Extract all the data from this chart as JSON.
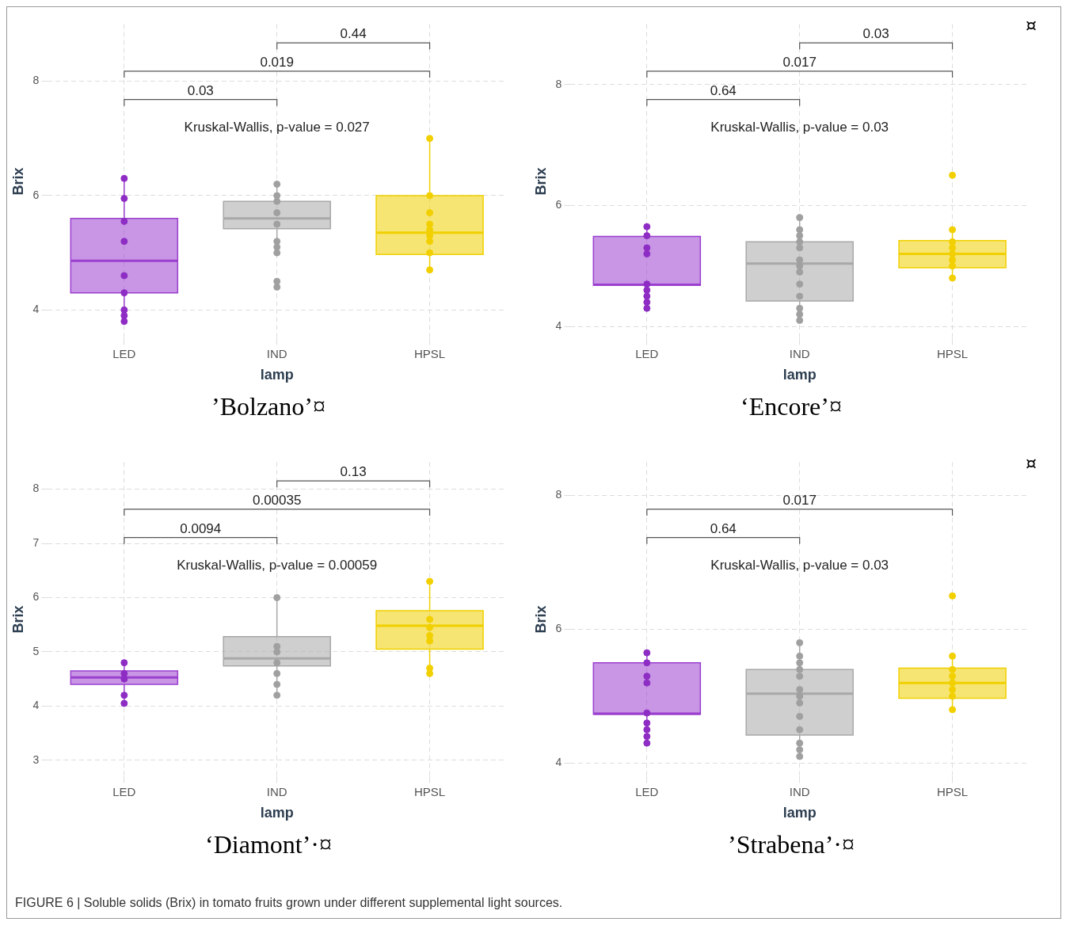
{
  "chart_data": [
    {
      "type": "box",
      "title": "’Bolzano’¤",
      "xlabel": "lamp",
      "ylabel": "Brix",
      "categories": [
        "LED",
        "IND",
        "HPSL"
      ],
      "colors": [
        "#9b3fcf",
        "#a8a8a8",
        "#f0d000"
      ],
      "ylim": [
        3.5,
        9.0
      ],
      "yticks": [
        4,
        6,
        8
      ],
      "grid": true,
      "boxes": [
        {
          "low": 3.8,
          "q1": 4.3,
          "median": 4.86,
          "q3": 5.6,
          "high": 6.27
        },
        {
          "low": 5.0,
          "q1": 5.42,
          "median": 5.6,
          "q3": 5.9,
          "high": 6.2
        },
        {
          "low": 4.7,
          "q1": 4.97,
          "median": 5.35,
          "q3": 6.0,
          "high": 7.0
        }
      ],
      "series": [
        {
          "type": "scatter",
          "color": "#8e2dc4",
          "x": [
            "LED",
            "LED",
            "LED",
            "LED",
            "LED",
            "LED",
            "LED",
            "LED",
            "LED"
          ],
          "values": [
            6.3,
            5.95,
            5.55,
            5.2,
            4.6,
            4.3,
            4.0,
            3.9,
            3.8
          ]
        },
        {
          "type": "scatter",
          "color": "#a0a0a0",
          "x": [
            "IND",
            "IND",
            "IND",
            "IND",
            "IND",
            "IND",
            "IND",
            "IND",
            "IND",
            "IND"
          ],
          "values": [
            6.2,
            6.0,
            5.9,
            5.7,
            5.5,
            5.2,
            5.1,
            5.0,
            4.5,
            4.4
          ]
        },
        {
          "type": "scatter",
          "color": "#f2d000",
          "x": [
            "HPSL",
            "HPSL",
            "HPSL",
            "HPSL",
            "HPSL",
            "HPSL",
            "HPSL",
            "HPSL",
            "HPSL"
          ],
          "values": [
            7.0,
            6.0,
            5.7,
            5.5,
            5.4,
            5.3,
            5.2,
            5.0,
            4.7
          ]
        }
      ],
      "annotations": [
        "Kruskal-Wallis, p-value = 0.027",
        "0.03",
        "0.019",
        "0.44"
      ]
    },
    {
      "type": "box",
      "title": "‘Encore’¤",
      "subtitle": "¤",
      "xlabel": "lamp",
      "ylabel": "Brix",
      "categories": [
        "LED",
        "IND",
        "HPSL"
      ],
      "colors": [
        "#9b3fcf",
        "#a8a8a8",
        "#f0d000"
      ],
      "ylim": [
        3.8,
        9.0
      ],
      "yticks": [
        4,
        6,
        8
      ],
      "grid": true,
      "boxes": [
        {
          "low": 4.3,
          "q1": 4.68,
          "median": 4.69,
          "q3": 5.49,
          "high": 5.7
        },
        {
          "low": 4.1,
          "q1": 4.42,
          "median": 5.04,
          "q3": 5.4,
          "high": 5.8
        },
        {
          "low": 4.8,
          "q1": 4.97,
          "median": 5.2,
          "q3": 5.42,
          "high": 5.6
        }
      ],
      "series": [
        {
          "type": "scatter",
          "color": "#8e2dc4",
          "x": [
            "LED",
            "LED",
            "LED",
            "LED",
            "LED",
            "LED",
            "LED",
            "LED",
            "LED"
          ],
          "values": [
            5.65,
            5.5,
            5.3,
            5.2,
            4.7,
            4.6,
            4.5,
            4.4,
            4.3
          ]
        },
        {
          "type": "scatter",
          "color": "#a0a0a0",
          "x": [
            "IND",
            "IND",
            "IND",
            "IND",
            "IND",
            "IND",
            "IND",
            "IND",
            "IND",
            "IND",
            "IND",
            "IND",
            "IND"
          ],
          "values": [
            5.8,
            5.6,
            5.5,
            5.4,
            5.3,
            5.1,
            5.0,
            4.9,
            4.7,
            4.5,
            4.3,
            4.2,
            4.1
          ]
        },
        {
          "type": "scatter",
          "color": "#f2d000",
          "x": [
            "HPSL",
            "HPSL",
            "HPSL",
            "HPSL",
            "HPSL",
            "HPSL",
            "HPSL",
            "HPSL"
          ],
          "values": [
            6.5,
            5.6,
            5.4,
            5.3,
            5.2,
            5.1,
            5.0,
            4.8
          ]
        }
      ],
      "annotations": [
        "Kruskal-Wallis, p-value = 0.03",
        "0.64",
        "0.017",
        "0.03"
      ]
    },
    {
      "type": "box",
      "title": "‘Diamont’·¤",
      "xlabel": "lamp",
      "ylabel": "Brix",
      "categories": [
        "LED",
        "IND",
        "HPSL"
      ],
      "colors": [
        "#9b3fcf",
        "#a8a8a8",
        "#f0d000"
      ],
      "ylim": [
        2.7,
        8.5
      ],
      "yticks": [
        3,
        4,
        5,
        6,
        7,
        8
      ],
      "grid": true,
      "boxes": [
        {
          "low": 4.1,
          "q1": 4.4,
          "median": 4.53,
          "q3": 4.65,
          "high": 4.8
        },
        {
          "low": 4.2,
          "q1": 4.74,
          "median": 4.88,
          "q3": 5.28,
          "high": 6.0
        },
        {
          "low": 4.6,
          "q1": 5.05,
          "median": 5.48,
          "q3": 5.76,
          "high": 6.3
        }
      ],
      "series": [
        {
          "type": "scatter",
          "color": "#8e2dc4",
          "x": [
            "LED",
            "LED",
            "LED",
            "LED",
            "LED"
          ],
          "values": [
            4.8,
            4.6,
            4.5,
            4.2,
            4.05
          ]
        },
        {
          "type": "scatter",
          "color": "#a0a0a0",
          "x": [
            "IND",
            "IND",
            "IND",
            "IND",
            "IND",
            "IND",
            "IND"
          ],
          "values": [
            6.0,
            5.1,
            5.0,
            4.8,
            4.6,
            4.4,
            4.2
          ]
        },
        {
          "type": "scatter",
          "color": "#f2d000",
          "x": [
            "HPSL",
            "HPSL",
            "HPSL",
            "HPSL",
            "HPSL",
            "HPSL",
            "HPSL"
          ],
          "values": [
            6.3,
            5.6,
            5.45,
            5.3,
            5.2,
            4.7,
            4.6
          ]
        }
      ],
      "annotations": [
        "Kruskal-Wallis, p-value = 0.00059",
        "0.0094",
        "0.00035",
        "0.13"
      ]
    },
    {
      "type": "box",
      "title": "’Strabena’·¤",
      "subtitle": "¤",
      "xlabel": "lamp",
      "ylabel": "Brix",
      "categories": [
        "LED",
        "IND",
        "HPSL"
      ],
      "colors": [
        "#9b3fcf",
        "#a8a8a8",
        "#f0d000"
      ],
      "ylim": [
        3.8,
        8.5
      ],
      "yticks": [
        4,
        6,
        8
      ],
      "grid": true,
      "boxes": [
        {
          "low": 4.3,
          "q1": 4.73,
          "median": 4.74,
          "q3": 5.5,
          "high": 5.7
        },
        {
          "low": 4.1,
          "q1": 4.42,
          "median": 5.04,
          "q3": 5.4,
          "high": 5.8
        },
        {
          "low": 4.8,
          "q1": 4.97,
          "median": 5.2,
          "q3": 5.42,
          "high": 5.6
        }
      ],
      "series": [
        {
          "type": "scatter",
          "color": "#8e2dc4",
          "x": [
            "LED",
            "LED",
            "LED",
            "LED",
            "LED",
            "LED",
            "LED",
            "LED",
            "LED"
          ],
          "values": [
            5.65,
            5.5,
            5.3,
            5.2,
            4.75,
            4.6,
            4.5,
            4.4,
            4.3
          ]
        },
        {
          "type": "scatter",
          "color": "#a0a0a0",
          "x": [
            "IND",
            "IND",
            "IND",
            "IND",
            "IND",
            "IND",
            "IND",
            "IND",
            "IND",
            "IND",
            "IND",
            "IND",
            "IND"
          ],
          "values": [
            5.8,
            5.6,
            5.5,
            5.4,
            5.3,
            5.1,
            5.0,
            4.9,
            4.7,
            4.5,
            4.3,
            4.2,
            4.1
          ]
        },
        {
          "type": "scatter",
          "color": "#f2d000",
          "x": [
            "HPSL",
            "HPSL",
            "HPSL",
            "HPSL",
            "HPSL",
            "HPSL",
            "HPSL",
            "HPSL"
          ],
          "values": [
            6.5,
            5.6,
            5.4,
            5.3,
            5.2,
            5.1,
            5.0,
            4.8
          ]
        }
      ],
      "annotations": [
        "Kruskal-Wallis, p-value = 0.03",
        "0.64",
        "0.017"
      ]
    },
    {
      "type": "other",
      "annotations": [
        "FIGURE 6 | Soluble solids (Brix) in tomato fruits grown under different supplemental light sources."
      ]
    }
  ]
}
